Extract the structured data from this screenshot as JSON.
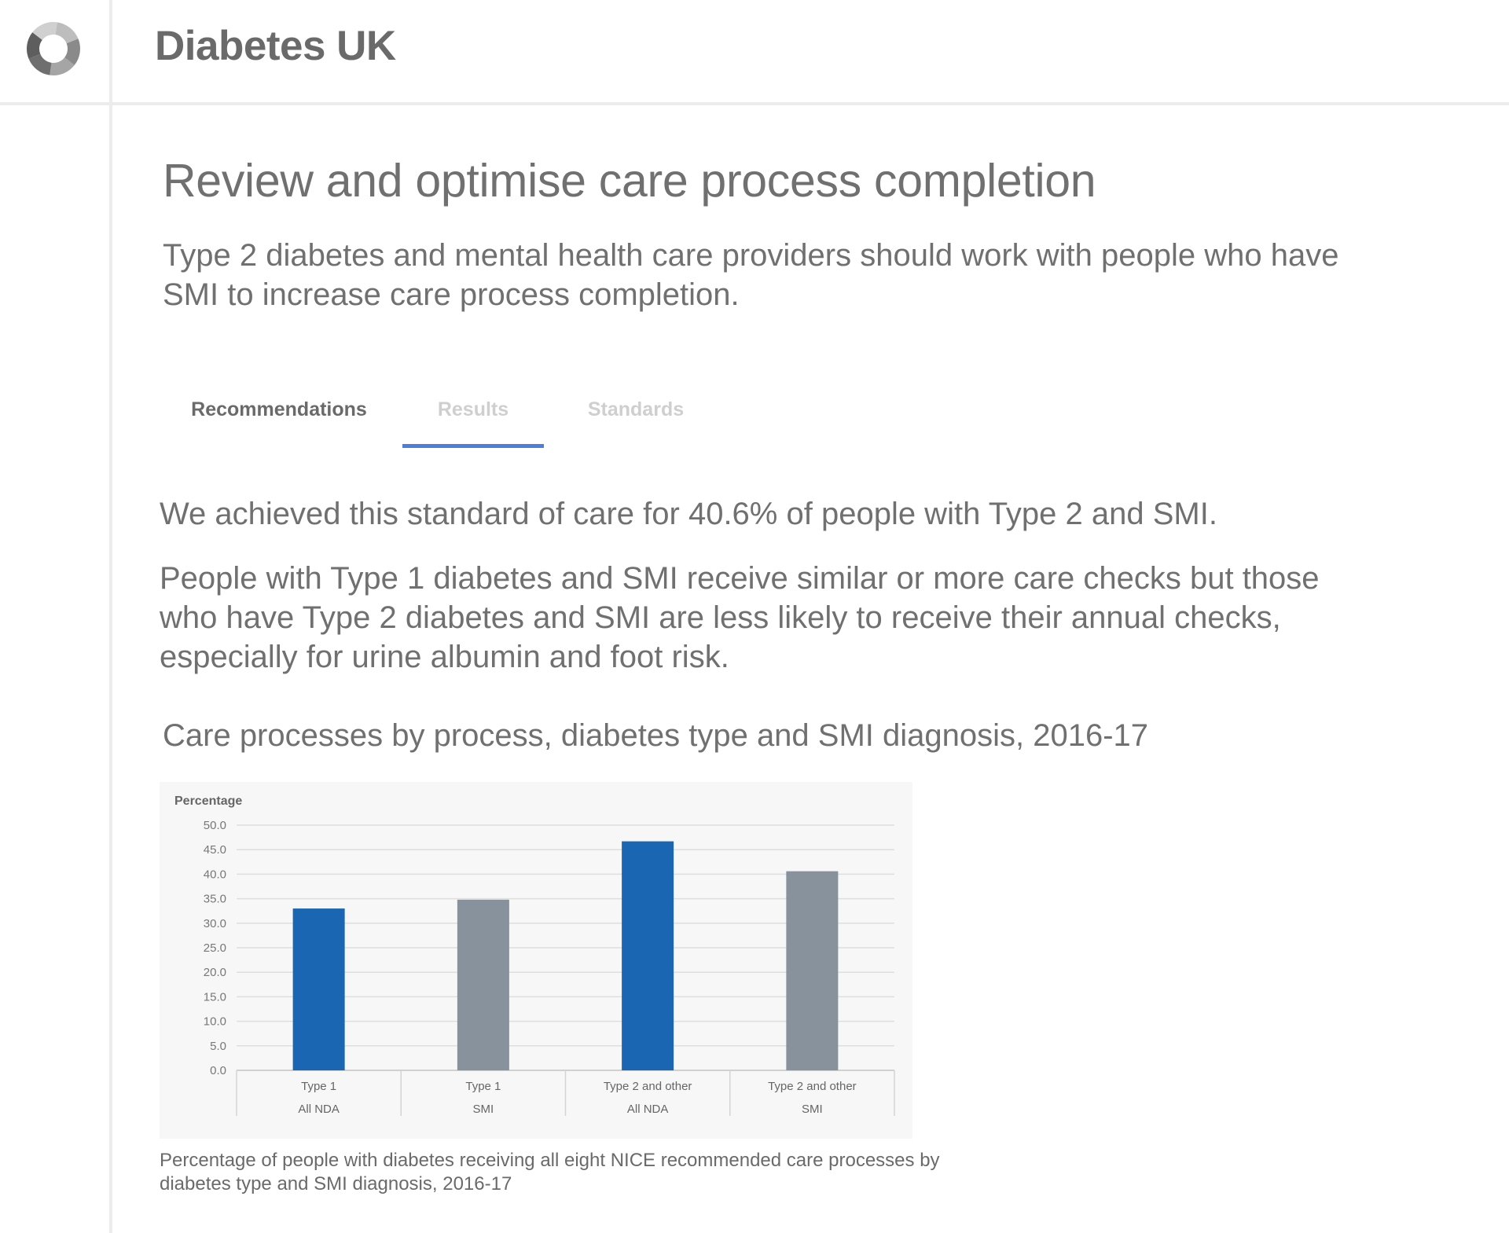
{
  "header": {
    "brand": "Diabetes UK",
    "logo_icon": "logo-ring-icon"
  },
  "page": {
    "title": "Review and optimise care process completion",
    "subtitle": "Type 2 diabetes and mental health care providers should work with people who have SMI to increase care process completion."
  },
  "tabs": [
    {
      "label": "Recommendations",
      "active": false
    },
    {
      "label": "Results",
      "active": true
    },
    {
      "label": "Standards",
      "active": false
    }
  ],
  "content": {
    "summary": "We achieved this standard of care for 40.6% of people with Type 2 and SMI.",
    "detail": "People with Type 1 diabetes and SMI receive similar or more care checks but those who have Type 2 diabetes and SMI are less likely to receive their annual checks, especially for urine albumin and foot risk.",
    "chart_heading": "Care processes by process, diabetes type and SMI diagnosis, 2016-17",
    "caption": "Percentage of people with diabetes receiving all eight NICE recommended care processes by diabetes type and SMI diagnosis, 2016-17"
  },
  "chart_data": {
    "type": "bar",
    "title": "",
    "ylabel": "Percentage",
    "xlabel": "",
    "ylim": [
      0,
      50
    ],
    "ytick_step": 5,
    "ytick_labels": [
      "0.0",
      "5.0",
      "10.0",
      "15.0",
      "20.0",
      "25.0",
      "30.0",
      "35.0",
      "40.0",
      "45.0",
      "50.0"
    ],
    "categories": [
      [
        "Type 1",
        "All NDA"
      ],
      [
        "Type 1",
        "SMI"
      ],
      [
        "Type 2 and other",
        "All NDA"
      ],
      [
        "Type 2 and other",
        "SMI"
      ]
    ],
    "values": [
      33.0,
      34.8,
      46.7,
      40.6
    ],
    "bar_colors": [
      "#1a66b3",
      "#87929c",
      "#1a66b3",
      "#87929c"
    ],
    "grid": true,
    "legend": "none"
  },
  "colors": {
    "accent": "#4a7fe0",
    "bar_primary": "#1a66b3",
    "bar_secondary": "#87929c"
  }
}
